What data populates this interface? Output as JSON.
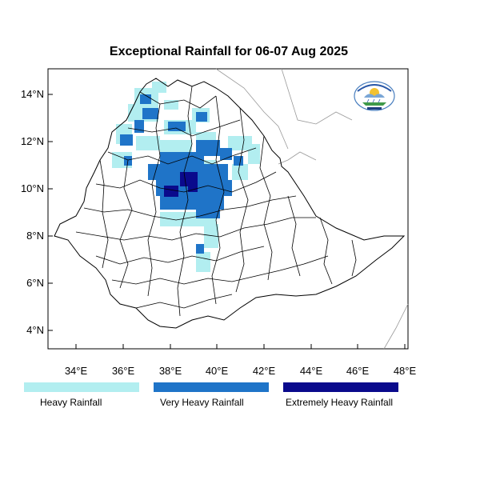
{
  "title": "Exceptional Rainfall for 06-07 Aug 2025",
  "axes": {
    "x_ticks": [
      "34°E",
      "36°E",
      "38°E",
      "40°E",
      "42°E",
      "44°E",
      "46°E",
      "48°E"
    ],
    "y_ticks": [
      "14°N",
      "12°N",
      "10°N",
      "8°N",
      "6°N",
      "4°N"
    ]
  },
  "legend": [
    {
      "label": "Heavy Rainfall",
      "color": "#b2eef0"
    },
    {
      "label": "Very Heavy Rainfall",
      "color": "#1f74c8"
    },
    {
      "label": "Extremely Heavy Rainfall",
      "color": "#0a0a8c"
    }
  ],
  "colors": {
    "heavy": "#b2eef0",
    "very_heavy": "#1f74c8",
    "extreme": "#0a0a8c",
    "boundary": "#000000",
    "neighbor_border": "#9a9a9a"
  },
  "logo": {
    "icon": "meteorology-agency-logo"
  }
}
